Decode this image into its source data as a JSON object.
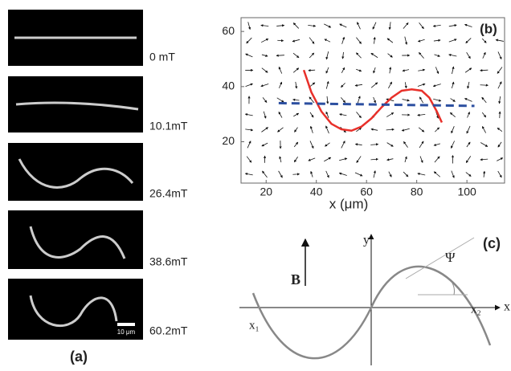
{
  "panel_a": {
    "label": "(a)",
    "fields": [
      "0 mT",
      "10.1mT",
      "26.4mT",
      "38.6mT",
      "60.2mT"
    ],
    "scale_bar": "10 μm"
  },
  "chart_data": {
    "type": "line",
    "label": "(b)",
    "xlabel": "x (μm)",
    "xlim": [
      10,
      115
    ],
    "ylim": [
      5,
      65
    ],
    "xticks": [
      20,
      40,
      60,
      80,
      100
    ],
    "yticks": [
      20,
      40,
      60
    ],
    "series": [
      {
        "color": "#e8302a",
        "linestyle": "solid",
        "x": [
          35,
          38,
          42,
          46,
          50,
          54,
          58,
          62,
          66,
          70,
          74,
          78,
          82,
          85,
          88,
          90
        ],
        "values": [
          46,
          38,
          31,
          26.5,
          24.5,
          24,
          25.5,
          28.5,
          32.5,
          36,
          38.5,
          39,
          38.5,
          36,
          31,
          27
        ]
      },
      {
        "color": "#2c4fa0",
        "linestyle": "dashed",
        "x": [
          25,
          103
        ],
        "values": [
          34,
          33
        ]
      }
    ]
  },
  "panel_c": {
    "label": "(c)",
    "field": "B",
    "y_axis": "y",
    "x_axis": "x",
    "angle": "Ψ",
    "x1": "x₁",
    "x2": "x₂"
  }
}
